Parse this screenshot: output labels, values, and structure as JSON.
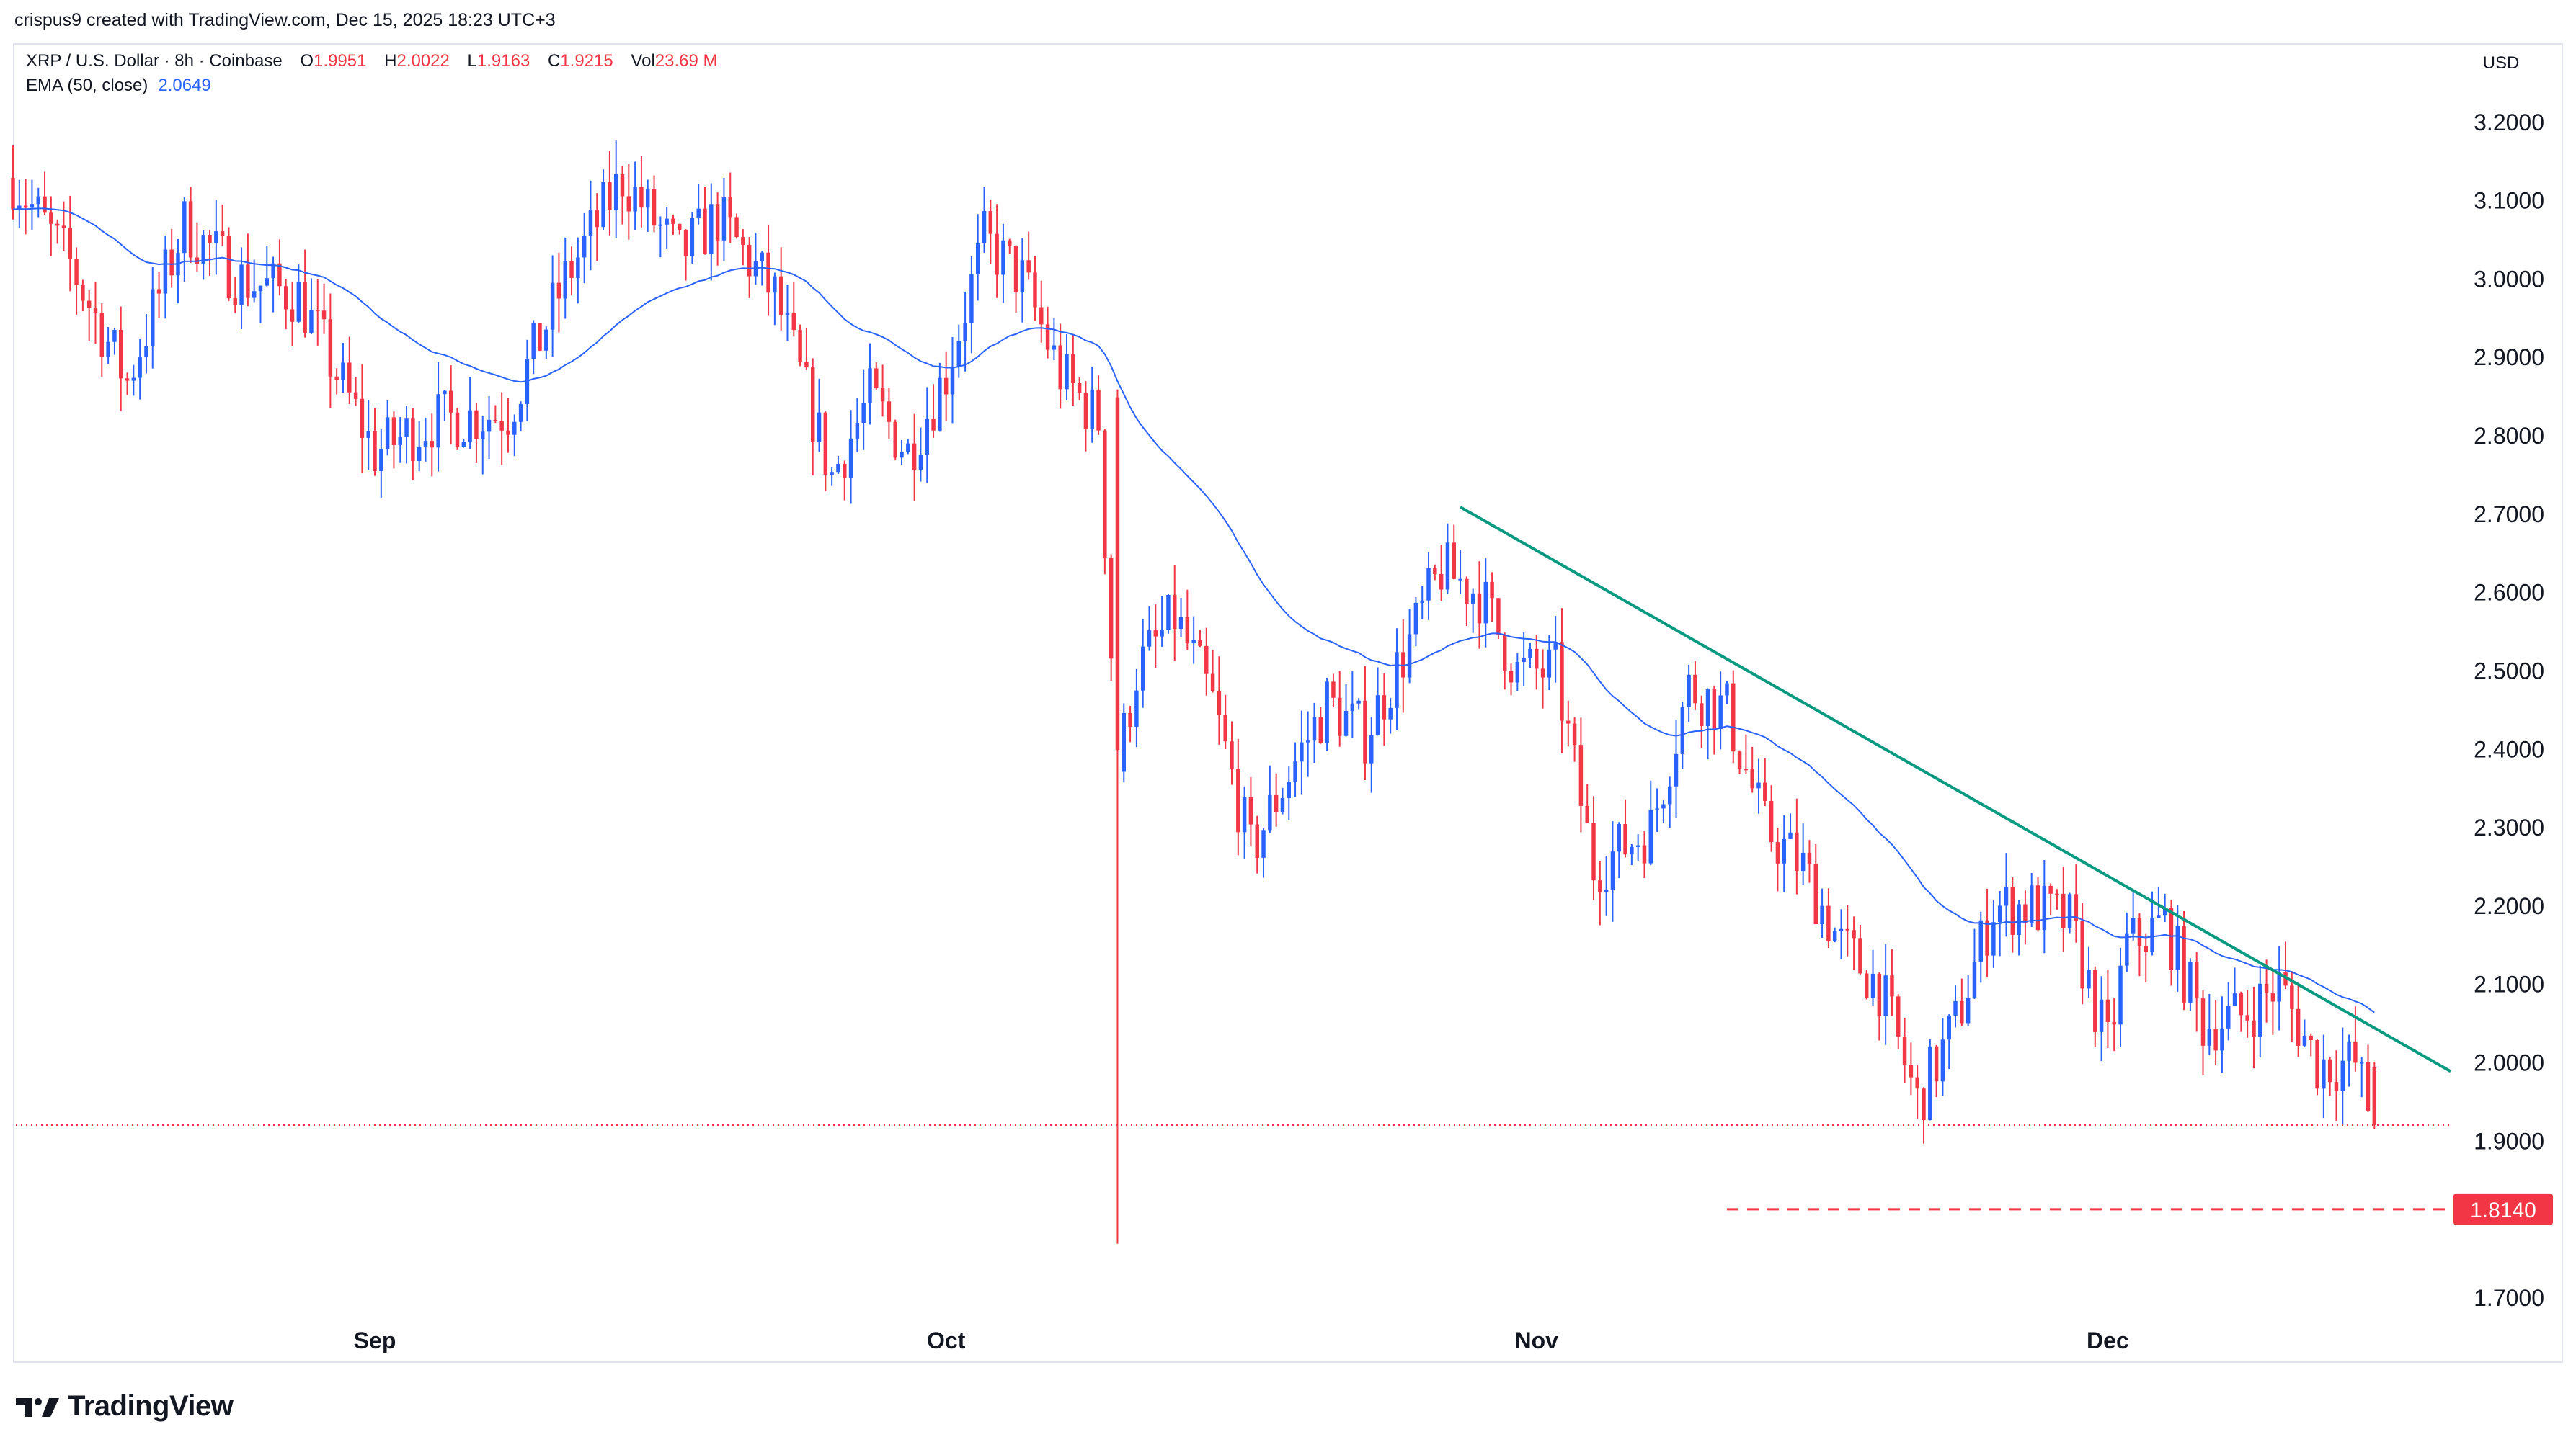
{
  "header": {
    "credit": "crispus9 created with TradingView.com, Dec 15, 2025 18:23 UTC+3"
  },
  "legend": {
    "symbol": "XRP / U.S. Dollar · 8h · Coinbase",
    "open_label": "O",
    "open": "1.9951",
    "high_label": "H",
    "high": "2.0022",
    "low_label": "L",
    "low": "1.9163",
    "close_label": "C",
    "close": "1.9215",
    "vol_label": "Vol",
    "vol": "23.69 M",
    "ema_label": "EMA (50, close)",
    "ema_value": "2.0649"
  },
  "axis": {
    "currency": "USD"
  },
  "footer": {
    "brand": "TradingView"
  },
  "colors": {
    "up": "#2962ff",
    "down": "#f23645",
    "ema": "#2962ff",
    "trendline": "#089981",
    "support": "#f23645",
    "price_line": "#f23645"
  },
  "chart_data": {
    "type": "candlestick",
    "ylim": [
      1.62,
      3.3
    ],
    "y_ticks": [
      "3.2000",
      "3.1000",
      "3.0000",
      "2.9000",
      "2.8000",
      "2.7000",
      "2.6000",
      "2.5000",
      "2.4000",
      "2.3000",
      "2.2000",
      "2.1000",
      "2.0000",
      "1.9000",
      "1.7000"
    ],
    "x_labels": [
      {
        "label": "Sep",
        "date": "2025-09-01"
      },
      {
        "label": "Oct",
        "date": "2025-10-01"
      },
      {
        "label": "Nov",
        "date": "2025-11-01"
      },
      {
        "label": "Dec",
        "date": "2025-12-01"
      }
    ],
    "close_anchors": [
      [
        "2025-08-13",
        3.13
      ],
      [
        "2025-08-16",
        3.02
      ],
      [
        "2025-08-19",
        2.87
      ],
      [
        "2025-08-22",
        3.07
      ],
      [
        "2025-08-25",
        3.0
      ],
      [
        "2025-08-28",
        2.98
      ],
      [
        "2025-09-01",
        2.78
      ],
      [
        "2025-09-04",
        2.82
      ],
      [
        "2025-09-08",
        2.83
      ],
      [
        "2025-09-11",
        3.0
      ],
      [
        "2025-09-14",
        3.13
      ],
      [
        "2025-09-17",
        3.03
      ],
      [
        "2025-09-19",
        3.08
      ],
      [
        "2025-09-22",
        2.98
      ],
      [
        "2025-09-25",
        2.75
      ],
      [
        "2025-09-27",
        2.85
      ],
      [
        "2025-09-29",
        2.78
      ],
      [
        "2025-10-01",
        2.88
      ],
      [
        "2025-10-03",
        3.05
      ],
      [
        "2025-10-05",
        3.0
      ],
      [
        "2025-10-07",
        2.88
      ],
      [
        "2025-10-09",
        2.82
      ],
      [
        "2025-10-10",
        2.38
      ],
      [
        "2025-10-11",
        2.5
      ],
      [
        "2025-10-13",
        2.57
      ],
      [
        "2025-10-15",
        2.46
      ],
      [
        "2025-10-17",
        2.27
      ],
      [
        "2025-10-19",
        2.37
      ],
      [
        "2025-10-21",
        2.46
      ],
      [
        "2025-10-23",
        2.42
      ],
      [
        "2025-10-25",
        2.52
      ],
      [
        "2025-10-27",
        2.63
      ],
      [
        "2025-10-29",
        2.6
      ],
      [
        "2025-10-31",
        2.5
      ],
      [
        "2025-11-02",
        2.5
      ],
      [
        "2025-11-04",
        2.25
      ],
      [
        "2025-11-07",
        2.3
      ],
      [
        "2025-11-09",
        2.48
      ],
      [
        "2025-11-11",
        2.45
      ],
      [
        "2025-11-13",
        2.3
      ],
      [
        "2025-11-15",
        2.25
      ],
      [
        "2025-11-17",
        2.15
      ],
      [
        "2025-11-19",
        2.1
      ],
      [
        "2025-11-21",
        1.95
      ],
      [
        "2025-11-23",
        2.05
      ],
      [
        "2025-11-25",
        2.2
      ],
      [
        "2025-11-27",
        2.2
      ],
      [
        "2025-11-29",
        2.18
      ],
      [
        "2025-12-01",
        2.02
      ],
      [
        "2025-12-02",
        2.15
      ],
      [
        "2025-12-04",
        2.18
      ],
      [
        "2025-12-06",
        2.05
      ],
      [
        "2025-12-08",
        2.06
      ],
      [
        "2025-12-10",
        2.1
      ],
      [
        "2025-12-12",
        2.0
      ],
      [
        "2025-12-14",
        2.0
      ],
      [
        "2025-12-15",
        1.92
      ]
    ],
    "flash_crash": {
      "date": "2025-10-10",
      "low": 1.77
    },
    "last_candle": {
      "open": 1.9951,
      "high": 2.0022,
      "low": 1.9163,
      "close": 1.9215
    },
    "indicators": [
      {
        "name": "EMA (50, close)",
        "last_value": 2.0649
      }
    ],
    "annotations": {
      "trendline": {
        "start": [
          "2025-10-28",
          2.71
        ],
        "end": [
          "2025-12-19",
          1.99
        ]
      },
      "support_level": {
        "value": 1.814,
        "label": "1.8140",
        "from": "2025-11-11"
      },
      "current_price": 1.9215
    },
    "grid": false
  }
}
